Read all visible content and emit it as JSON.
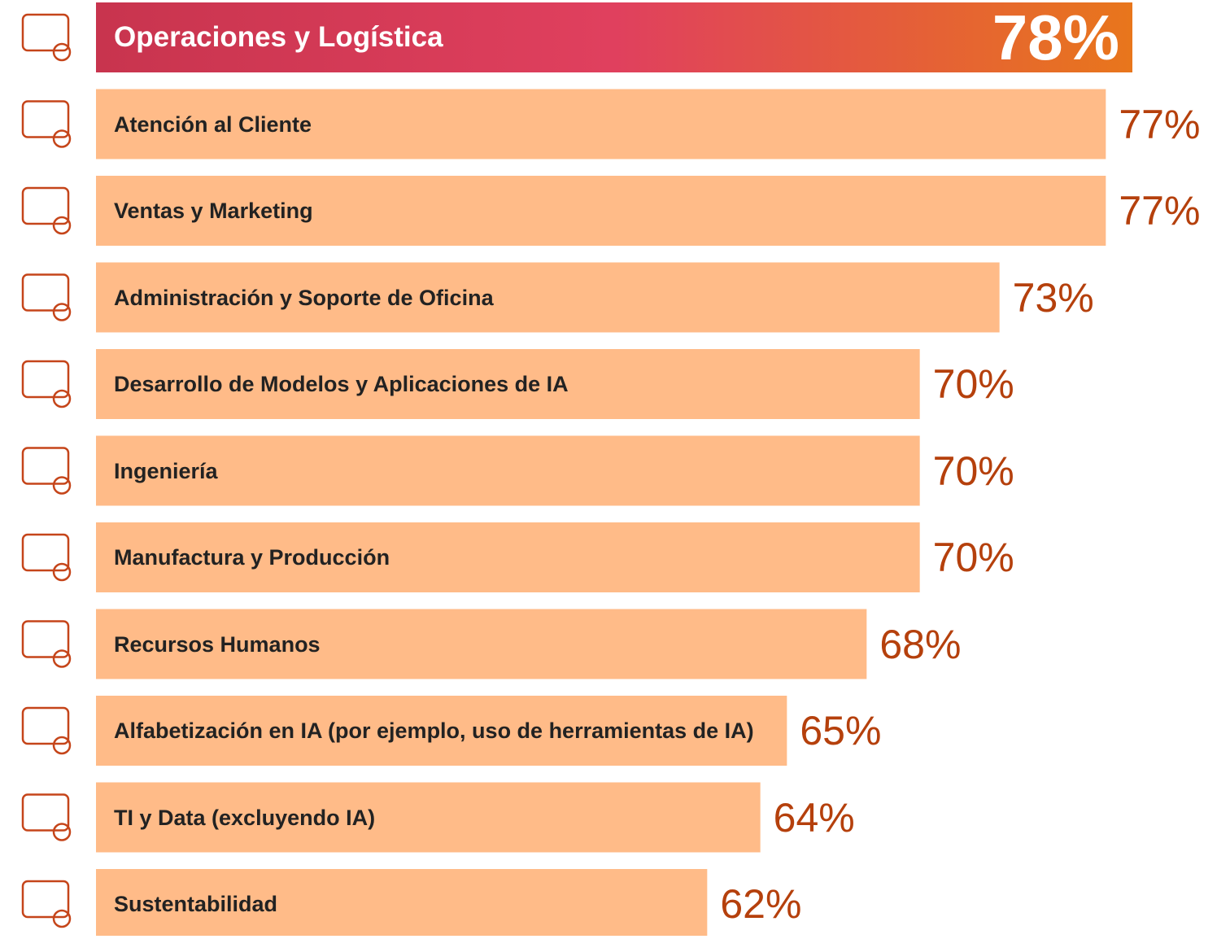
{
  "chart_data": {
    "type": "bar",
    "orientation": "horizontal",
    "categories": [
      "Operaciones y Logística",
      "Atención al Cliente",
      "Ventas y Marketing",
      "Administración y Soporte de Oficina",
      "Desarrollo de Modelos y Aplicaciones de IA",
      "Ingeniería",
      "Manufactura y Producción",
      "Recursos Humanos",
      "Alfabetización en IA (por ejemplo, uso de herramientas de IA)",
      "TI y Data (excluyendo IA)",
      "Sustentabilidad"
    ],
    "values": [
      78,
      77,
      77,
      73,
      70,
      70,
      70,
      68,
      65,
      64,
      62
    ],
    "value_labels": [
      "78%",
      "77%",
      "77%",
      "73%",
      "70%",
      "70%",
      "70%",
      "68%",
      "65%",
      "64%",
      "62%"
    ],
    "colors": [
      "#d93a58",
      "#ffbb88",
      "#ffbb88",
      "#ffbb88",
      "#ffbb88",
      "#ffbb88",
      "#ffbb88",
      "#ffbb88",
      "#ffbb88",
      "#ffbb88",
      "#ffbb88"
    ],
    "xlim": [
      39,
      78
    ]
  }
}
